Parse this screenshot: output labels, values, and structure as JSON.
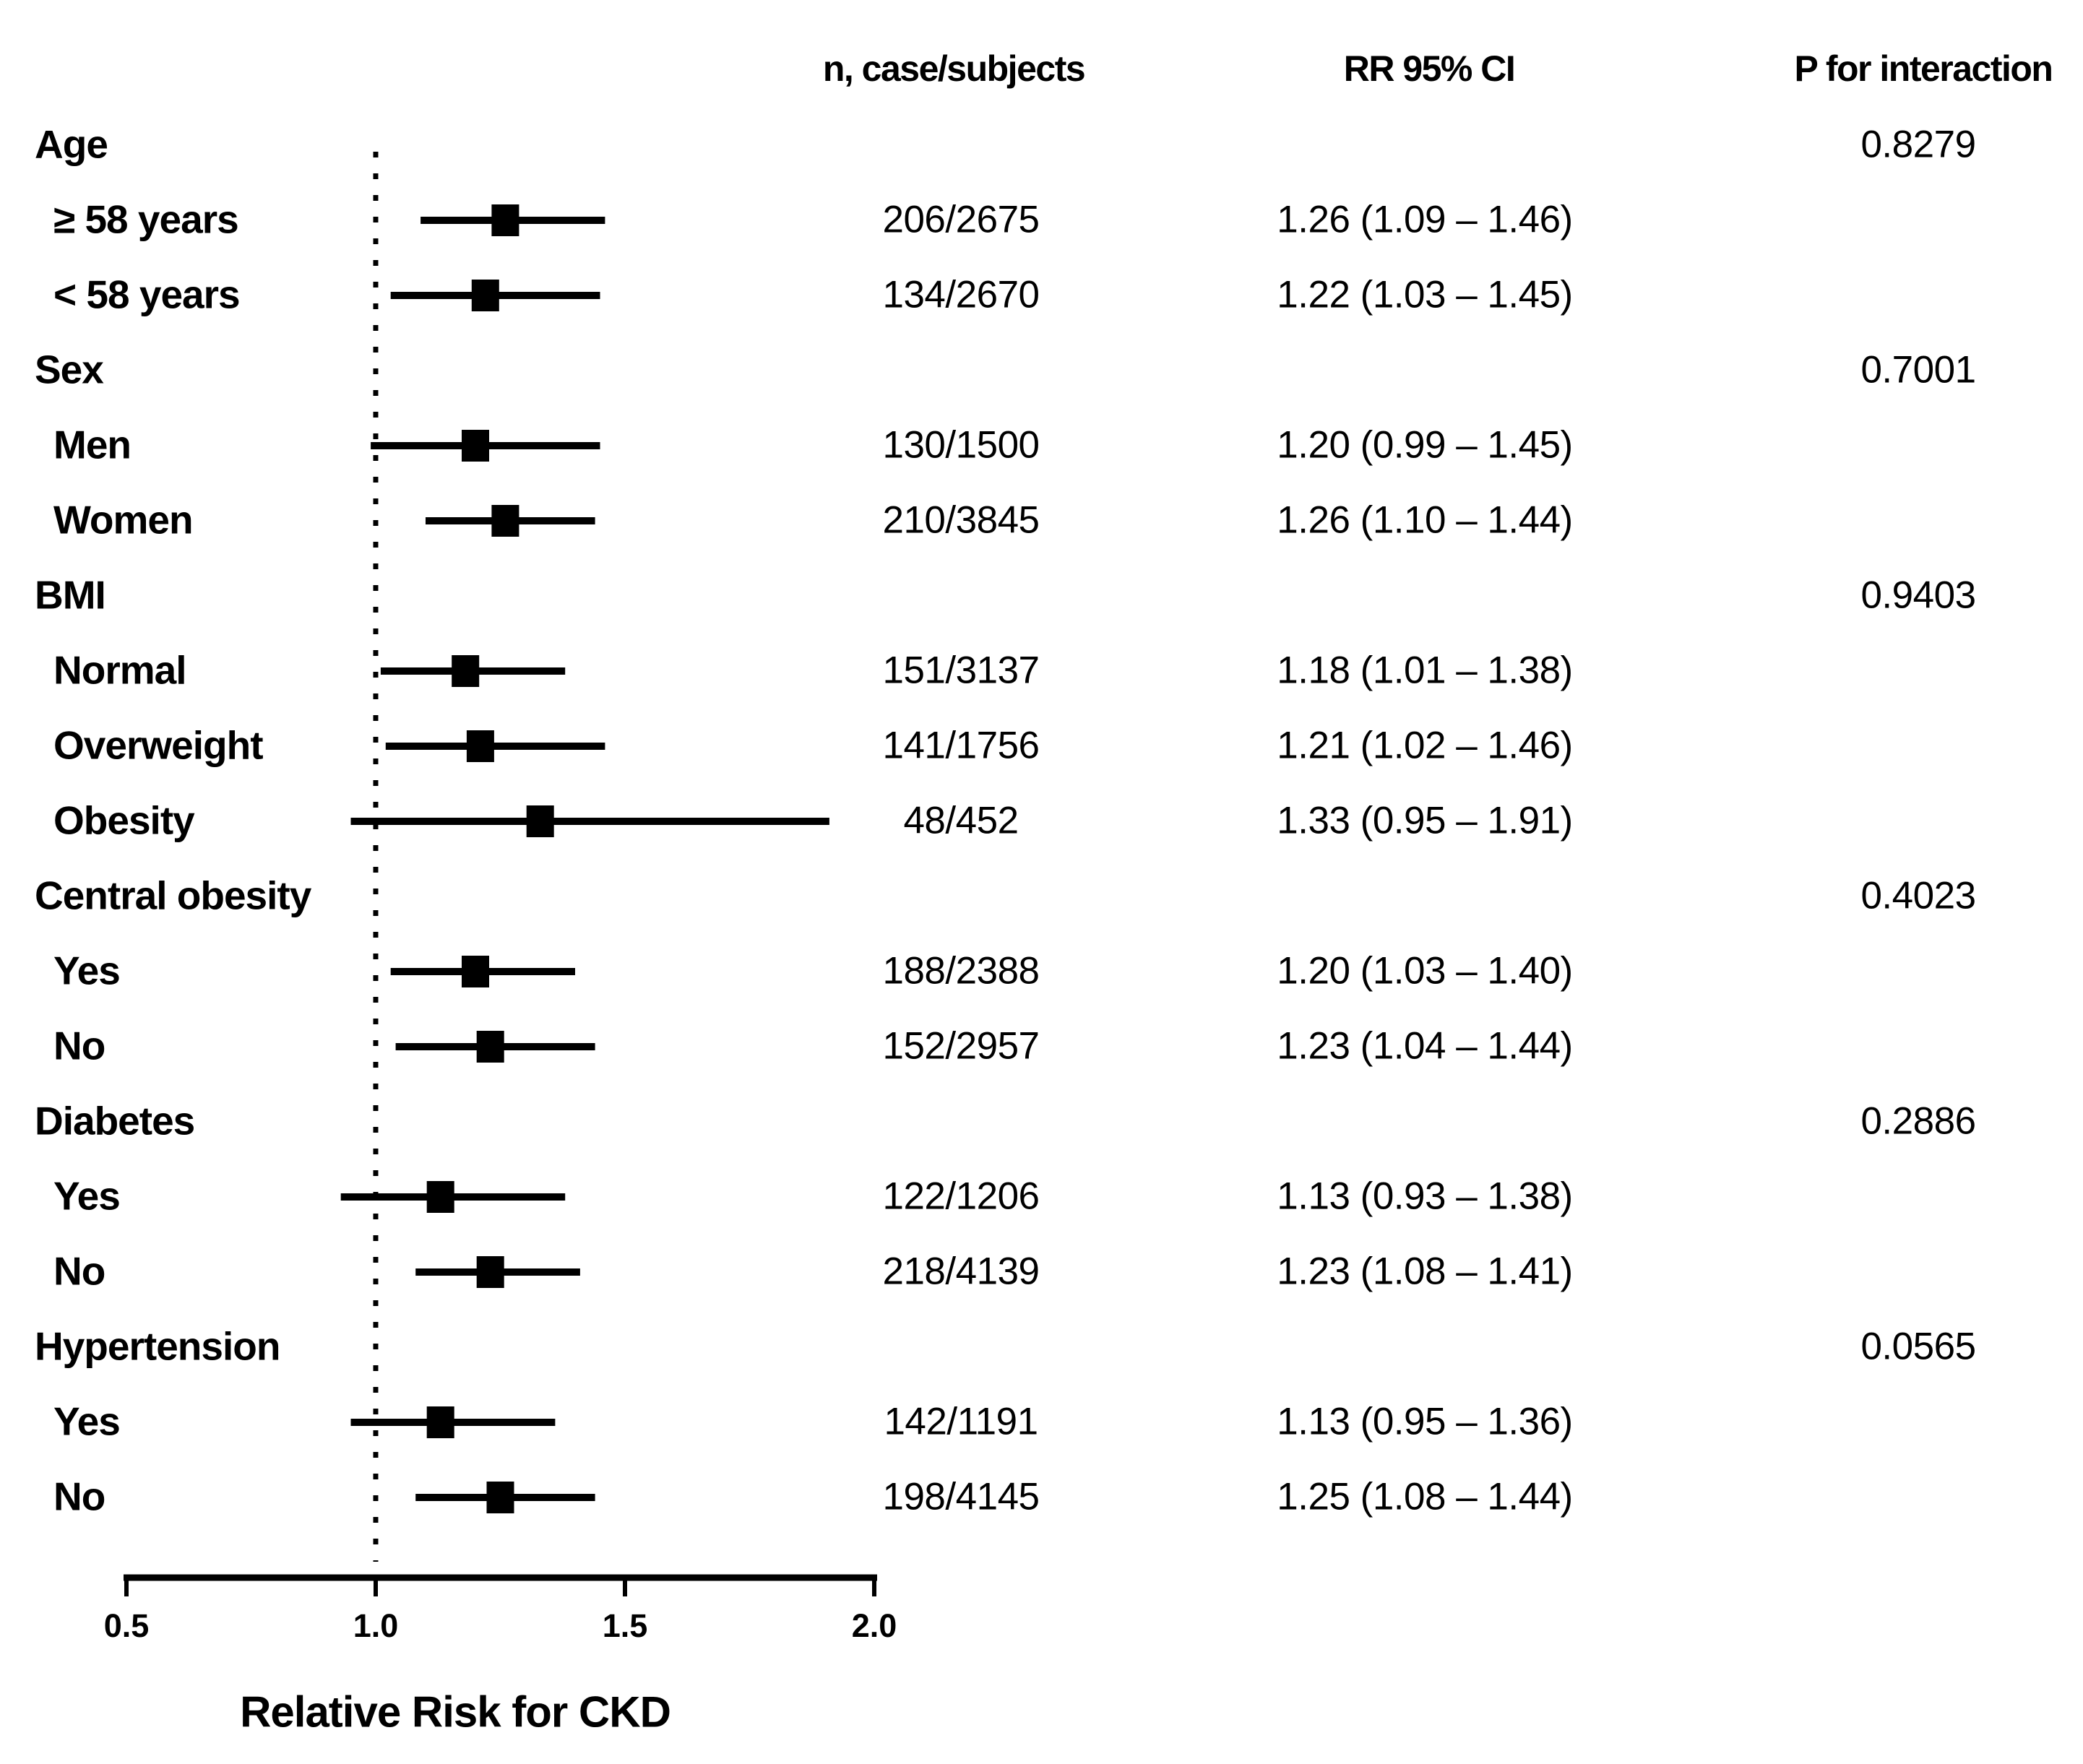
{
  "chart_data": {
    "type": "forest",
    "title": "",
    "xlabel": "Relative Risk for CKD",
    "xlim": [
      0.5,
      2.0
    ],
    "x_ticks": [
      0.5,
      1.0,
      1.5,
      2.0
    ],
    "x_tick_labels": [
      "0.5",
      "1.0",
      "1.5",
      "2.0"
    ],
    "reference_line": 1.0,
    "grid": false,
    "legend": false,
    "column_headers": {
      "n": "n, case/subjects",
      "rr": "RR 95% CI",
      "p": "P for interaction"
    },
    "rows": [
      {
        "kind": "group",
        "label": "Age",
        "p_interaction": "0.8279"
      },
      {
        "kind": "item",
        "label": "≥ 58 years",
        "n": "206/2675",
        "rr": 1.26,
        "ci_low": 1.09,
        "ci_high": 1.46,
        "rr_text": "1.26 (1.09 – 1.46)"
      },
      {
        "kind": "item",
        "label": "< 58 years",
        "n": "134/2670",
        "rr": 1.22,
        "ci_low": 1.03,
        "ci_high": 1.45,
        "rr_text": "1.22 (1.03 – 1.45)"
      },
      {
        "kind": "group",
        "label": "Sex",
        "p_interaction": "0.7001"
      },
      {
        "kind": "item",
        "label": "Men",
        "n": "130/1500",
        "rr": 1.2,
        "ci_low": 0.99,
        "ci_high": 1.45,
        "rr_text": "1.20 (0.99 – 1.45)"
      },
      {
        "kind": "item",
        "label": "Women",
        "n": "210/3845",
        "rr": 1.26,
        "ci_low": 1.1,
        "ci_high": 1.44,
        "rr_text": "1.26 (1.10 – 1.44)"
      },
      {
        "kind": "group",
        "label": "BMI",
        "p_interaction": "0.9403"
      },
      {
        "kind": "item",
        "label": "Normal",
        "n": "151/3137",
        "rr": 1.18,
        "ci_low": 1.01,
        "ci_high": 1.38,
        "rr_text": "1.18 (1.01 – 1.38)"
      },
      {
        "kind": "item",
        "label": "Overweight",
        "n": "141/1756",
        "rr": 1.21,
        "ci_low": 1.02,
        "ci_high": 1.46,
        "rr_text": "1.21 (1.02 – 1.46)"
      },
      {
        "kind": "item",
        "label": "Obesity",
        "n": "48/452",
        "rr": 1.33,
        "ci_low": 0.95,
        "ci_high": 1.91,
        "rr_text": "1.33 (0.95 – 1.91)"
      },
      {
        "kind": "group",
        "label": "Central obesity",
        "p_interaction": "0.4023"
      },
      {
        "kind": "item",
        "label": "Yes",
        "n": "188/2388",
        "rr": 1.2,
        "ci_low": 1.03,
        "ci_high": 1.4,
        "rr_text": "1.20 (1.03 – 1.40)"
      },
      {
        "kind": "item",
        "label": "No",
        "n": "152/2957",
        "rr": 1.23,
        "ci_low": 1.04,
        "ci_high": 1.44,
        "rr_text": "1.23 (1.04 – 1.44)"
      },
      {
        "kind": "group",
        "label": "Diabetes",
        "p_interaction": "0.2886"
      },
      {
        "kind": "item",
        "label": "Yes",
        "n": "122/1206",
        "rr": 1.13,
        "ci_low": 0.93,
        "ci_high": 1.38,
        "rr_text": "1.13 (0.93 – 1.38)"
      },
      {
        "kind": "item",
        "label": "No",
        "n": "218/4139",
        "rr": 1.23,
        "ci_low": 1.08,
        "ci_high": 1.41,
        "rr_text": "1.23 (1.08 – 1.41)"
      },
      {
        "kind": "group",
        "label": "Hypertension",
        "p_interaction": "0.0565"
      },
      {
        "kind": "item",
        "label": "Yes",
        "n": "142/1191",
        "rr": 1.13,
        "ci_low": 0.95,
        "ci_high": 1.36,
        "rr_text": "1.13 (0.95 – 1.36)"
      },
      {
        "kind": "item",
        "label": "No",
        "n": "198/4145",
        "rr": 1.25,
        "ci_low": 1.08,
        "ci_high": 1.44,
        "rr_text": "1.25 (1.08 – 1.44)"
      }
    ],
    "style": {
      "marker": "square",
      "ink_color": "#000000",
      "background": "#ffffff"
    }
  }
}
